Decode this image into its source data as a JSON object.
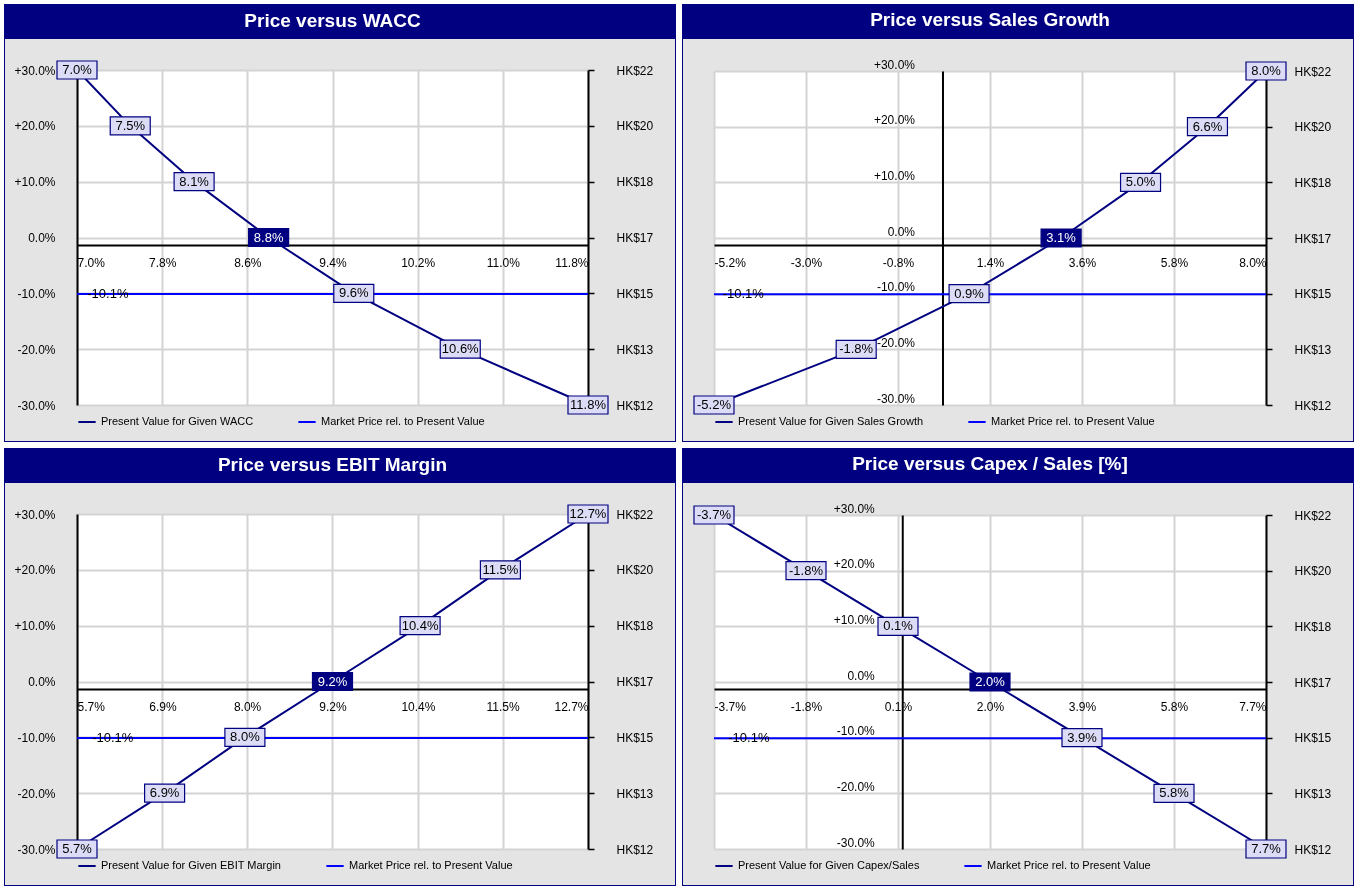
{
  "chart_data": [
    {
      "type": "line",
      "title": "Price versus WACC",
      "x": [
        7.0,
        7.5,
        8.1,
        8.8,
        9.6,
        10.6,
        11.8
      ],
      "xlim": [
        7.0,
        11.8
      ],
      "xticks": [
        {
          "value": 7.0,
          "label": "7.0%"
        },
        {
          "value": 7.8,
          "label": "7.8%"
        },
        {
          "value": 8.6,
          "label": "8.6%"
        },
        {
          "value": 9.4,
          "label": "9.4%"
        },
        {
          "value": 10.2,
          "label": "10.2%"
        },
        {
          "value": 11.0,
          "label": "11.0%"
        },
        {
          "value": 11.8,
          "label": "11.8%"
        }
      ],
      "ylim": [
        -30,
        30
      ],
      "yticks": [
        {
          "value": 30,
          "label": "+30.0%"
        },
        {
          "value": 20,
          "label": "+20.0%"
        },
        {
          "value": 10,
          "label": "+10.0%"
        },
        {
          "value": 0,
          "label": "0.0%"
        },
        {
          "value": -10,
          "label": "-10.0%"
        },
        {
          "value": -20,
          "label": "-20.0%"
        },
        {
          "value": -30,
          "label": "-30.0%"
        }
      ],
      "y2_categories": [
        "HK$22",
        "HK$20",
        "HK$18",
        "HK$17",
        "HK$15",
        "HK$13",
        "HK$12"
      ],
      "grid": true,
      "legend": "bottom",
      "marker": "square",
      "line_style": "solid",
      "series": [
        {
          "name": "Present Value for Given WACC",
          "color": "#000080",
          "values": [
            30,
            20,
            10,
            0,
            -10,
            -20,
            -30
          ]
        },
        {
          "name": "Market Price rel. to Present Value",
          "color": "#0000ff",
          "marker": "none",
          "x": [
            7.0,
            11.8
          ],
          "values": [
            -10.1,
            -10.1
          ]
        }
      ],
      "annotations": [
        {
          "text": "7.0%",
          "x": 7.0,
          "y": 30
        },
        {
          "text": "7.5%",
          "x": 7.5,
          "y": 20
        },
        {
          "text": "8.1%",
          "x": 8.1,
          "y": 10
        },
        {
          "text": "8.8%",
          "x": 8.8,
          "y": 0
        },
        {
          "text": "9.6%",
          "x": 9.6,
          "y": -10
        },
        {
          "text": "10.6%",
          "x": 10.6,
          "y": -20
        },
        {
          "text": "11.8%",
          "x": 11.8,
          "y": -30
        },
        {
          "text": "-10.1%",
          "x": 7.29,
          "y": -10.1
        }
      ]
    },
    {
      "type": "line",
      "title": "Price versus Sales Growth",
      "x": [
        -5.2,
        -1.8,
        0.9,
        3.1,
        5.0,
        6.6,
        8.0
      ],
      "xlim": [
        -5.2,
        8.0
      ],
      "xticks": [
        {
          "value": -5.2,
          "label": "-5.2%"
        },
        {
          "value": -3.0,
          "label": "-3.0%"
        },
        {
          "value": -0.8,
          "label": "-0.8%"
        },
        {
          "value": 1.4,
          "label": "1.4%"
        },
        {
          "value": 3.6,
          "label": "3.6%"
        },
        {
          "value": 5.8,
          "label": "5.8%"
        },
        {
          "value": 8.0,
          "label": "8.0%"
        }
      ],
      "ylim": [
        -30,
        30
      ],
      "yticks": [
        {
          "value": 30,
          "label": "+30.0%"
        },
        {
          "value": 20,
          "label": "+20.0%"
        },
        {
          "value": 10,
          "label": "+10.0%"
        },
        {
          "value": 0,
          "label": "0.0%"
        },
        {
          "value": -10,
          "label": "-10.0%"
        },
        {
          "value": -20,
          "label": "-20.0%"
        },
        {
          "value": -30,
          "label": "-30.0%"
        }
      ],
      "y2_categories": [
        "HK$22",
        "HK$20",
        "HK$18",
        "HK$17",
        "HK$15",
        "HK$13",
        "HK$12"
      ],
      "grid": true,
      "legend": "bottom",
      "marker": "square",
      "line_style": "solid",
      "series": [
        {
          "name": "Present Value for Given Sales Growth",
          "color": "#000080",
          "values": [
            -30,
            -20,
            -10,
            0,
            10,
            20,
            30
          ]
        },
        {
          "name": "Market Price rel. to Present Value",
          "color": "#0000ff",
          "marker": "none",
          "x": [
            -5.2,
            8.0
          ],
          "values": [
            -10.1,
            -10.1
          ]
        }
      ],
      "annotations": [
        {
          "text": "-5.2%",
          "x": -5.2,
          "y": -30
        },
        {
          "text": "-1.8%",
          "x": -1.8,
          "y": -20
        },
        {
          "text": "0.9%",
          "x": 0.9,
          "y": -10
        },
        {
          "text": "3.1%",
          "x": 3.1,
          "y": 0
        },
        {
          "text": "5.0%",
          "x": 5.0,
          "y": 10
        },
        {
          "text": "6.6%",
          "x": 6.6,
          "y": 20
        },
        {
          "text": "8.0%",
          "x": 8.0,
          "y": 30
        },
        {
          "text": "-10.1%",
          "x": -4.5,
          "y": -10.1
        }
      ]
    },
    {
      "type": "line",
      "title": "Price versus EBIT Margin",
      "x": [
        5.7,
        6.9,
        8.0,
        9.2,
        10.4,
        11.5,
        12.7
      ],
      "xlim": [
        5.7,
        12.7
      ],
      "xticks": [
        {
          "value": 5.7,
          "label": "5.7%"
        },
        {
          "value": 6.87,
          "label": "6.9%"
        },
        {
          "value": 8.03,
          "label": "8.0%"
        },
        {
          "value": 9.2,
          "label": "9.2%"
        },
        {
          "value": 10.37,
          "label": "10.4%"
        },
        {
          "value": 11.53,
          "label": "11.5%"
        },
        {
          "value": 12.7,
          "label": "12.7%"
        }
      ],
      "ylim": [
        -30,
        30
      ],
      "yticks": [
        {
          "value": 30,
          "label": "+30.0%"
        },
        {
          "value": 20,
          "label": "+20.0%"
        },
        {
          "value": 10,
          "label": "+10.0%"
        },
        {
          "value": 0,
          "label": "0.0%"
        },
        {
          "value": -10,
          "label": "-10.0%"
        },
        {
          "value": -20,
          "label": "-20.0%"
        },
        {
          "value": -30,
          "label": "-30.0%"
        }
      ],
      "y2_categories": [
        "HK$22",
        "HK$20",
        "HK$18",
        "HK$17",
        "HK$15",
        "HK$13",
        "HK$12"
      ],
      "grid": true,
      "legend": "bottom",
      "marker": "square",
      "line_style": "solid",
      "series": [
        {
          "name": "Present Value for Given EBIT Margin",
          "color": "#000080",
          "values": [
            -30,
            -20,
            -10,
            0,
            10,
            20,
            30
          ]
        },
        {
          "name": "Market Price rel. to Present Value",
          "color": "#0000ff",
          "marker": "none",
          "x": [
            5.7,
            12.7
          ],
          "values": [
            -10.1,
            -10.1
          ]
        }
      ],
      "annotations": [
        {
          "text": "5.7%",
          "x": 5.7,
          "y": -30
        },
        {
          "text": "6.9%",
          "x": 6.9,
          "y": -20
        },
        {
          "text": "8.0%",
          "x": 8.0,
          "y": -10
        },
        {
          "text": "9.2%",
          "x": 9.2,
          "y": 0
        },
        {
          "text": "10.4%",
          "x": 10.4,
          "y": 10
        },
        {
          "text": "11.5%",
          "x": 11.5,
          "y": 20
        },
        {
          "text": "12.7%",
          "x": 12.7,
          "y": 30
        },
        {
          "text": "-10.1%",
          "x": 6.19,
          "y": -10.1
        }
      ]
    },
    {
      "type": "line",
      "title": "Price versus Capex / Sales [%]",
      "x": [
        -3.7,
        -1.8,
        0.1,
        2.0,
        3.9,
        5.8,
        7.7
      ],
      "xlim": [
        -3.7,
        7.7
      ],
      "xticks": [
        {
          "value": -3.7,
          "label": "-3.7%"
        },
        {
          "value": -1.8,
          "label": "-1.8%"
        },
        {
          "value": 0.1,
          "label": "0.1%"
        },
        {
          "value": 2.0,
          "label": "2.0%"
        },
        {
          "value": 3.9,
          "label": "3.9%"
        },
        {
          "value": 5.8,
          "label": "5.8%"
        },
        {
          "value": 7.7,
          "label": "7.7%"
        }
      ],
      "ylim": [
        -30,
        30
      ],
      "yticks": [
        {
          "value": 30,
          "label": "+30.0%"
        },
        {
          "value": 20,
          "label": "+20.0%"
        },
        {
          "value": 10,
          "label": "+10.0%"
        },
        {
          "value": 0,
          "label": "0.0%"
        },
        {
          "value": -10,
          "label": "-10.0%"
        },
        {
          "value": -20,
          "label": "-20.0%"
        },
        {
          "value": -30,
          "label": "-30.0%"
        }
      ],
      "y2_categories": [
        "HK$22",
        "HK$20",
        "HK$18",
        "HK$17",
        "HK$15",
        "HK$13",
        "HK$12"
      ],
      "grid": true,
      "legend": "bottom",
      "marker": "square",
      "line_style": "solid",
      "series": [
        {
          "name": "Present Value for Given Capex/Sales",
          "color": "#000080",
          "values": [
            30,
            20,
            10,
            0,
            -10,
            -20,
            -30
          ]
        },
        {
          "name": "Market Price rel. to Present Value",
          "color": "#0000ff",
          "marker": "none",
          "x": [
            -3.7,
            7.7
          ],
          "values": [
            -10.1,
            -10.1
          ]
        }
      ],
      "annotations": [
        {
          "text": "-3.7%",
          "x": -3.7,
          "y": 30
        },
        {
          "text": "-1.8%",
          "x": -1.8,
          "y": 20
        },
        {
          "text": "0.1%",
          "x": 0.1,
          "y": 10
        },
        {
          "text": "2.0%",
          "x": 2.0,
          "y": 0
        },
        {
          "text": "3.9%",
          "x": 3.9,
          "y": -10
        },
        {
          "text": "5.8%",
          "x": 5.8,
          "y": -20
        },
        {
          "text": "7.7%",
          "x": 7.7,
          "y": -30
        },
        {
          "text": "-10.1%",
          "x": -2.98,
          "y": -10.1
        }
      ]
    }
  ]
}
